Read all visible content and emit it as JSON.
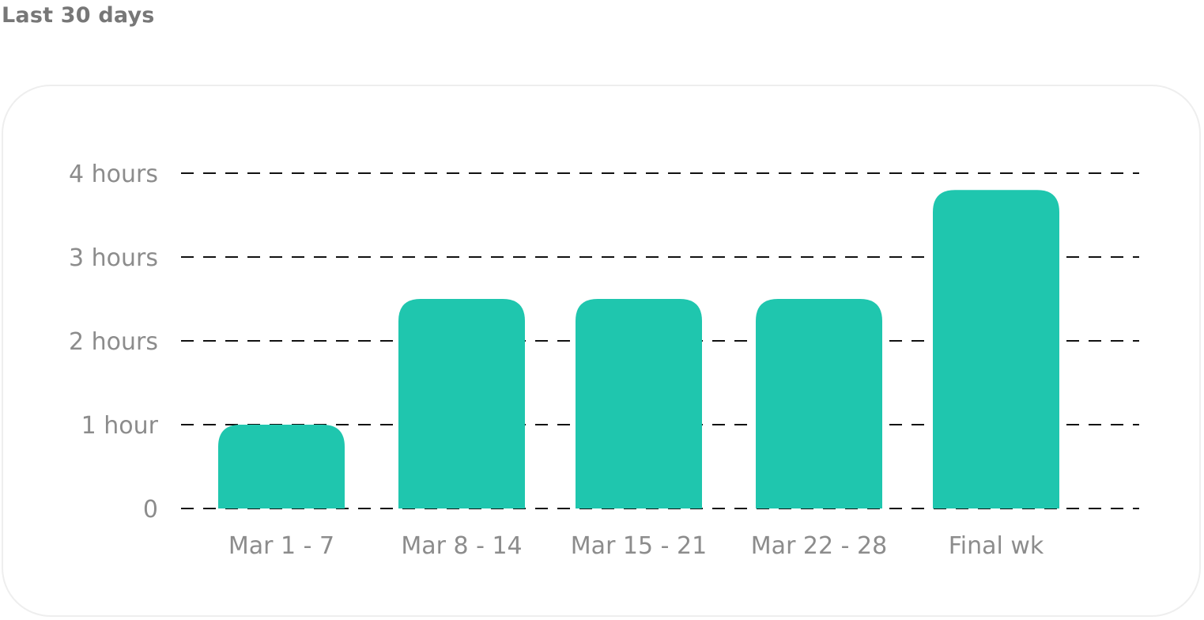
{
  "header": {
    "title": "Last 30 days"
  },
  "chart_data": {
    "type": "bar",
    "categories": [
      "Mar 1 - 7",
      "Mar 8 - 14",
      "Mar 15 - 21",
      "Mar 22 - 28",
      "Final wk"
    ],
    "values": [
      1.0,
      2.5,
      2.5,
      2.5,
      3.8
    ],
    "y_ticks": [
      {
        "value": 0,
        "label": "0"
      },
      {
        "value": 1,
        "label": "1 hour"
      },
      {
        "value": 2,
        "label": "2 hours"
      },
      {
        "value": 3,
        "label": "3 hours"
      },
      {
        "value": 4,
        "label": "4 hours"
      }
    ],
    "ylim": [
      0,
      4
    ],
    "grid": "dashed-horizontal",
    "legend": "none",
    "bar_color": "#1fc6ae",
    "grid_color": "#111111",
    "label_color": "#8c8c8c"
  }
}
